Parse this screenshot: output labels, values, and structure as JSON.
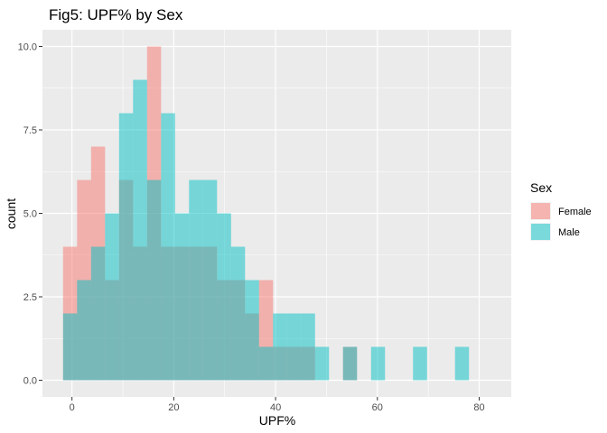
{
  "chart_data": {
    "type": "histogram",
    "title": "Fig5: UPF% by Sex",
    "xlabel": "UPF%",
    "ylabel": "count",
    "xlim": [
      -5.8,
      86.3
    ],
    "ylim": [
      -0.5,
      10.5
    ],
    "x_ticks": [
      0,
      20,
      40,
      60,
      80
    ],
    "x_tick_labels": [
      "0",
      "20",
      "40",
      "60",
      "80"
    ],
    "y_ticks": [
      0,
      2.5,
      5,
      7.5,
      10
    ],
    "y_tick_labels": [
      "0.0",
      "2.5",
      "5.0",
      "7.5",
      "10.0"
    ],
    "grid": true,
    "bin_width": 2.75,
    "bin_starts": [
      -1.75,
      1.0,
      3.75,
      6.5,
      9.25,
      12.0,
      14.75,
      17.5,
      20.25,
      23.0,
      25.75,
      28.5,
      31.25,
      34.0,
      36.75,
      39.5,
      42.25,
      45.0,
      47.75,
      50.5,
      53.25,
      56.0,
      58.75,
      61.5,
      64.25,
      67.0,
      69.75,
      72.5,
      75.25,
      78.0
    ],
    "legend": {
      "title": "Sex",
      "position": "right",
      "entries": [
        {
          "name": "Female",
          "color": "#F8766D"
        },
        {
          "name": "Male",
          "color": "#00BFC4"
        }
      ]
    },
    "series": [
      {
        "name": "Female",
        "color": "#F8766D",
        "counts": [
          4,
          6,
          7,
          3,
          6,
          4,
          10,
          4,
          4,
          4,
          4,
          3,
          3,
          2,
          3,
          1,
          1,
          1,
          0,
          0,
          1,
          0,
          0,
          0,
          0,
          0,
          0,
          0,
          0,
          0
        ]
      },
      {
        "name": "Male",
        "color": "#00BFC4",
        "counts": [
          2,
          3,
          4,
          5,
          8,
          9,
          6,
          8,
          5,
          6,
          6,
          5,
          4,
          3,
          1,
          2,
          2,
          2,
          1,
          0,
          1,
          0,
          1,
          0,
          0,
          1,
          0,
          0,
          1,
          0
        ]
      }
    ],
    "bar_alpha": 0.5,
    "panel_color": "#EBEBEB",
    "grid_color": "#FFFFFF"
  }
}
